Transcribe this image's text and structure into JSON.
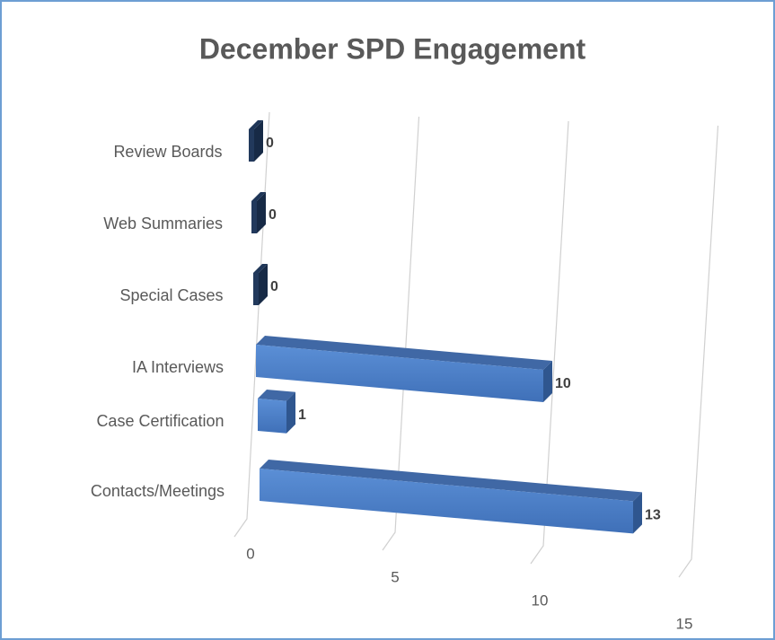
{
  "chart_data": {
    "type": "bar",
    "title": "December SPD Engagement",
    "categories": [
      "Review Boards",
      "Web Summaries",
      "Special Cases",
      "IA Interviews",
      "Case Certification",
      "Contacts/Meetings"
    ],
    "values": [
      0,
      0,
      0,
      10,
      1,
      13
    ],
    "color": "#4a7ec6",
    "xlim": [
      0,
      15
    ],
    "xticks": [
      0,
      5,
      10,
      15
    ],
    "grid": true
  }
}
